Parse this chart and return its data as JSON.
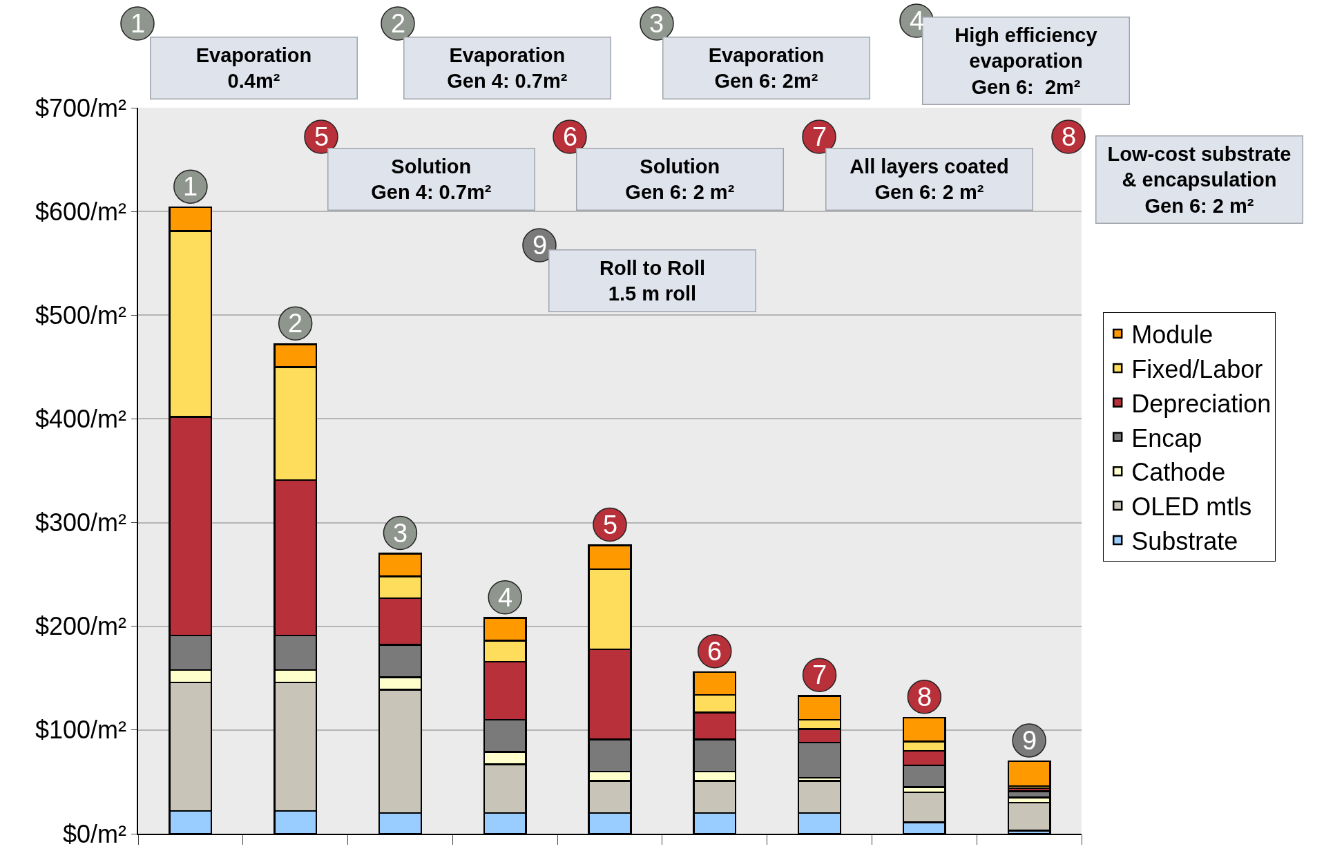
{
  "chart_data": {
    "type": "bar",
    "stacked": true,
    "categories": [
      null,
      null,
      null,
      null,
      null,
      null,
      null,
      null,
      null
    ],
    "series": [
      {
        "name": "Substrate",
        "color": "#99ccff",
        "values": [
          22,
          22,
          20,
          20,
          20,
          20,
          20,
          11,
          3
        ]
      },
      {
        "name": "OLED mtls",
        "color": "#c8c4b8",
        "values": [
          124,
          124,
          119,
          47,
          31,
          31,
          31,
          29,
          27
        ]
      },
      {
        "name": "Cathode",
        "color": "#ffffcc",
        "values": [
          12,
          12,
          12,
          12,
          9,
          9,
          3,
          5,
          5
        ]
      },
      {
        "name": "Encap",
        "color": "#7a7a7a",
        "values": [
          33,
          33,
          31,
          31,
          31,
          31,
          34,
          21,
          6
        ]
      },
      {
        "name": "Depreciation",
        "color": "#b8303a",
        "values": [
          211,
          150,
          45,
          56,
          87,
          26,
          13,
          14,
          3
        ]
      },
      {
        "name": "Fixed/Labor",
        "color": "#ffdd5c",
        "values": [
          179,
          109,
          21,
          20,
          77,
          17,
          9,
          9,
          2
        ]
      },
      {
        "name": "Module",
        "color": "#ff9900",
        "values": [
          23,
          22,
          22,
          22,
          23,
          22,
          23,
          23,
          24
        ]
      }
    ],
    "ylim": [
      0,
      700
    ],
    "yticks": [
      {
        "value": 0,
        "label": "$0/m²"
      },
      {
        "value": 100,
        "label": "$100/m²"
      },
      {
        "value": 200,
        "label": "$200/m²"
      },
      {
        "value": 300,
        "label": "$300/m²"
      },
      {
        "value": 400,
        "label": "$400/m²"
      },
      {
        "value": 500,
        "label": "$500/m²"
      },
      {
        "value": 600,
        "label": "$600/m²"
      },
      {
        "value": 700,
        "label": "$700/m²"
      }
    ],
    "tick_labels": "y",
    "grid": "y",
    "legend": "right",
    "annotations": [
      "Evaporation\n0.4m²",
      "Evaporation\nGen 4: 0.7m²",
      "Evaporation\nGen 6: 2m²",
      "High efficiency\nevaporation\nGen 6:  2m²",
      "Solution\nGen 4: 0.7m²",
      "Solution\nGen 6: 2 m²",
      "All layers coated\nGen 6: 2 m²",
      "Low-cost substrate\n& encapsulation\nGen 6: 2 m²",
      "Roll to Roll\n1.5 m roll",
      "1",
      "2",
      "3",
      "4",
      "5",
      "6",
      "7",
      "8",
      "9",
      {
        "text": "1",
        "y": 604
      },
      {
        "text": "2",
        "y": 472
      },
      {
        "text": "3",
        "y": 270
      },
      {
        "text": "4",
        "y": 208
      },
      {
        "text": "5",
        "y": 278
      },
      {
        "text": "6",
        "y": 156
      },
      {
        "text": "7",
        "y": 133
      },
      {
        "text": "8",
        "y": 112
      },
      {
        "text": "9",
        "y": 70
      }
    ]
  }
}
